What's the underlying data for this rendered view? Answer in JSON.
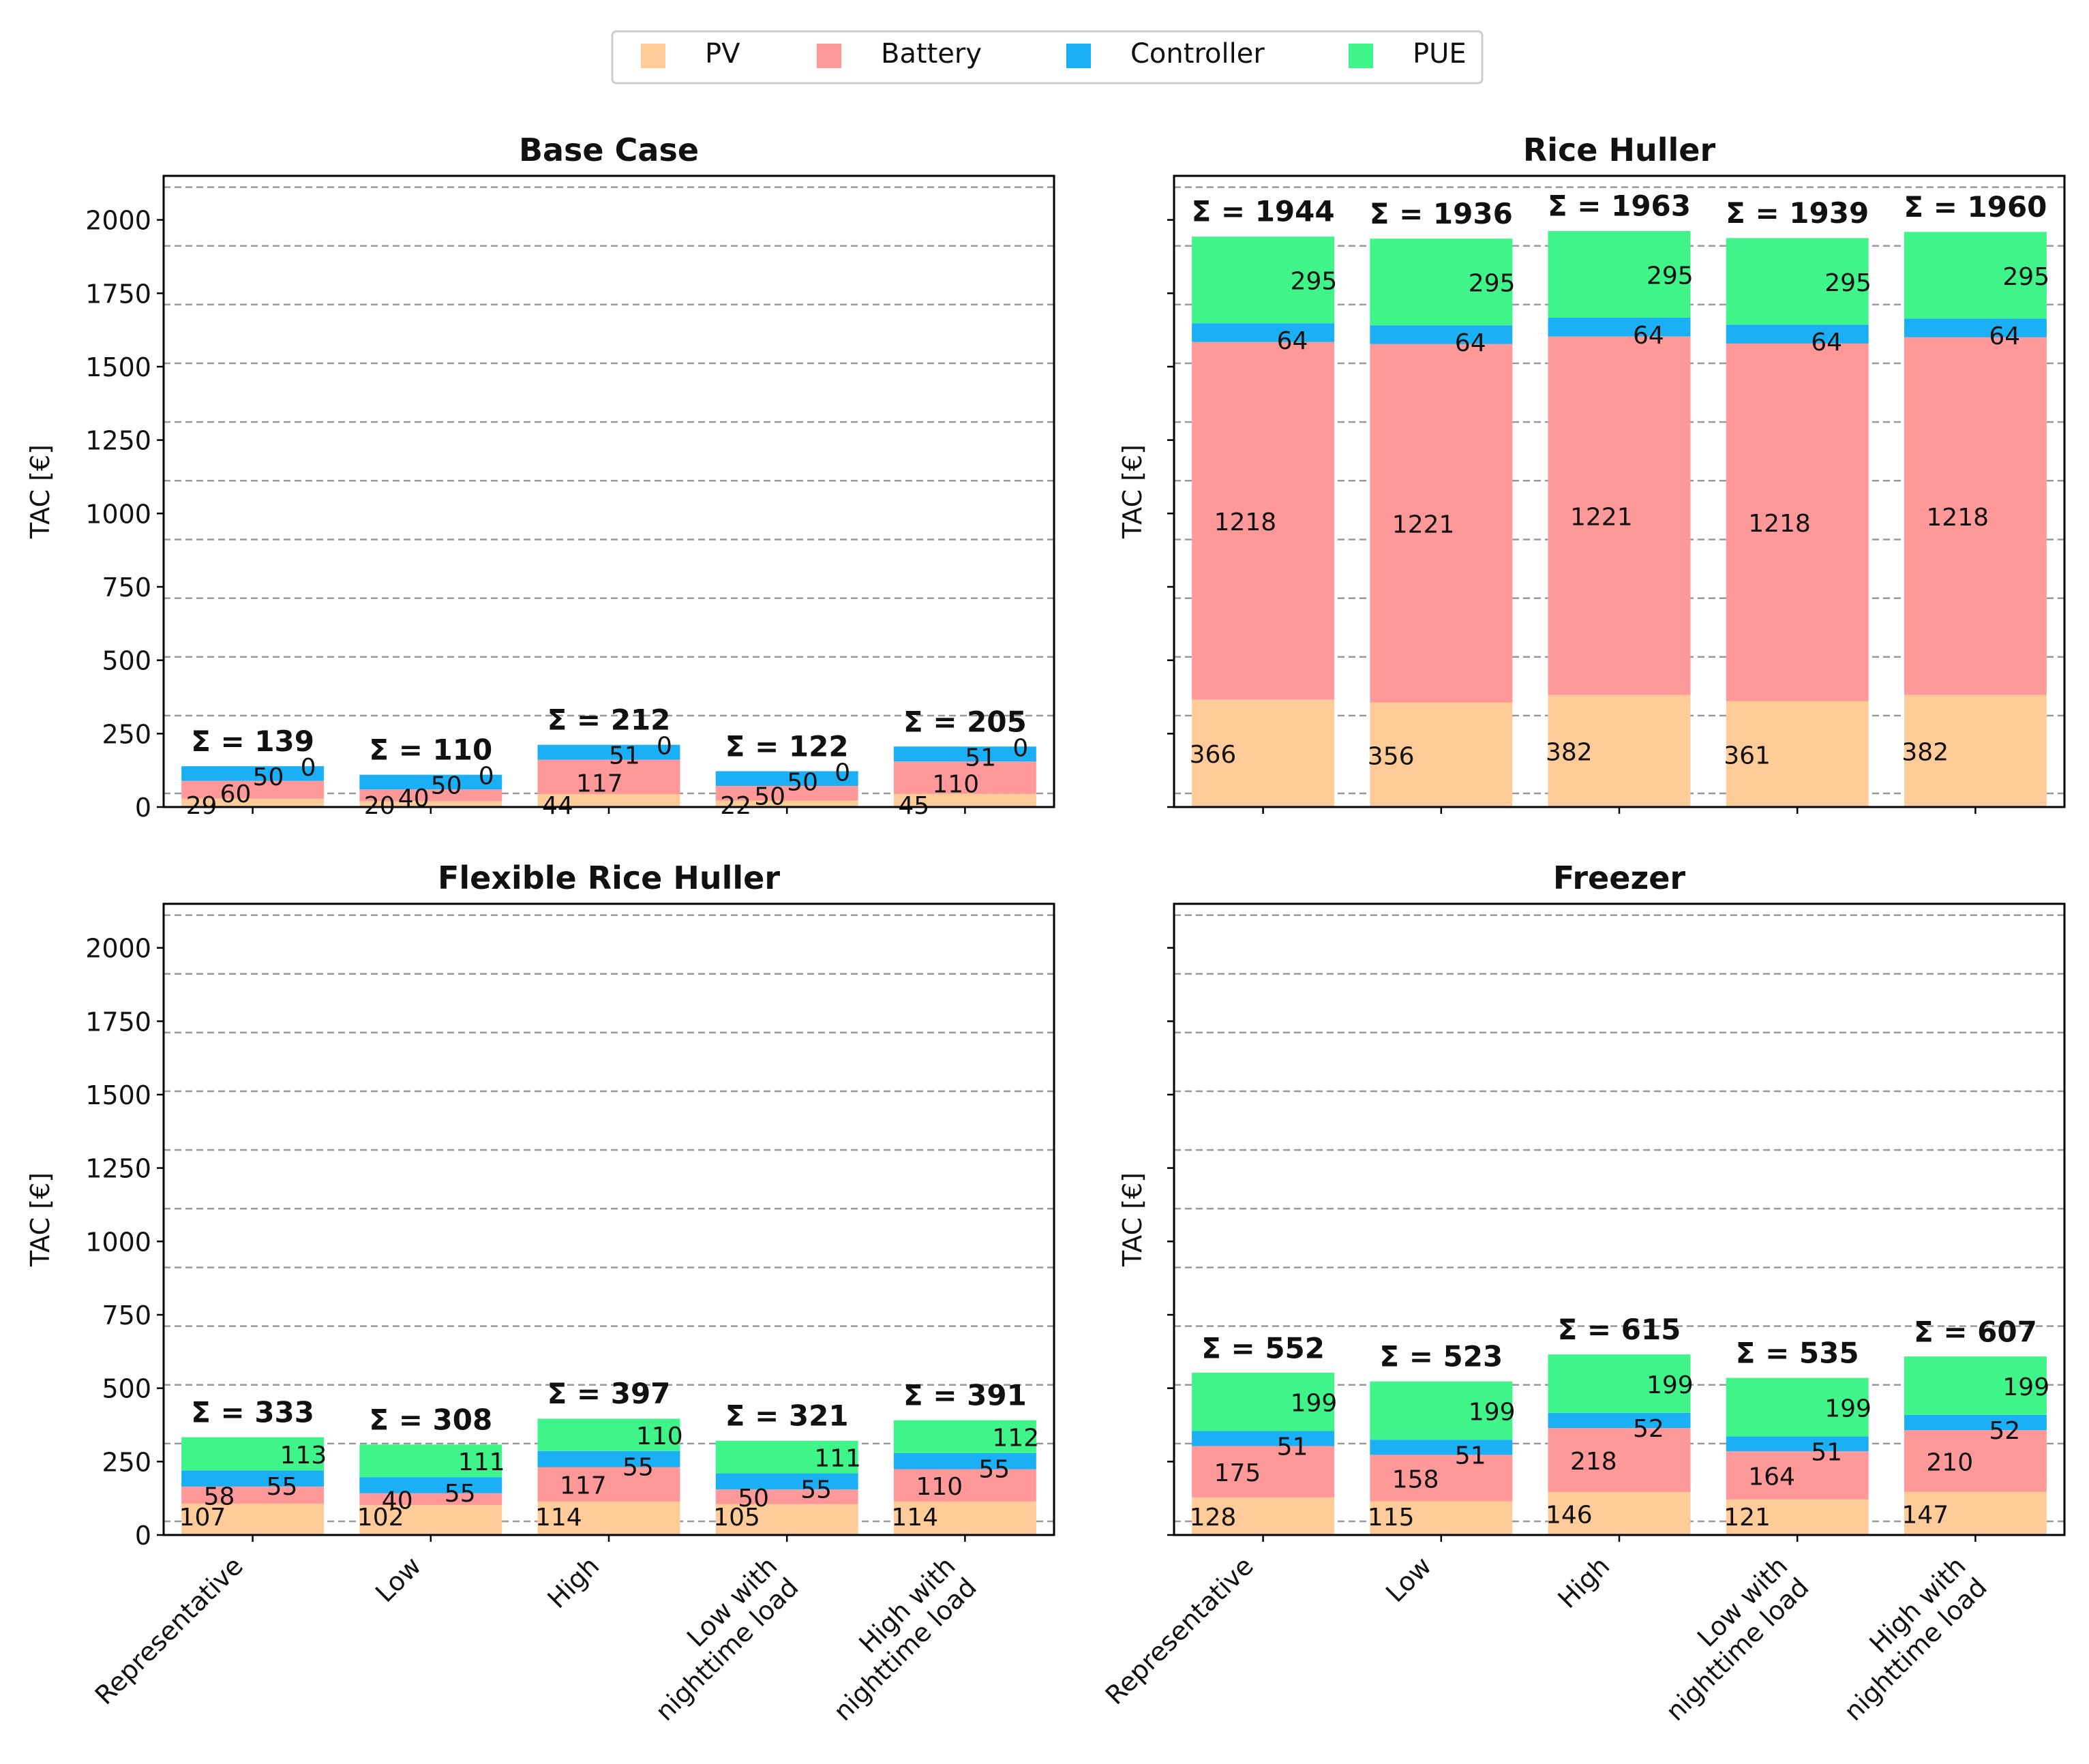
{
  "legend": {
    "location": "top-center",
    "items": [
      {
        "label": "PV",
        "color": "#FFCC99"
      },
      {
        "label": "Battery",
        "color": "#FF9999"
      },
      {
        "label": "Controller",
        "color": "#1BB0F5"
      },
      {
        "label": "PUE",
        "color": "#3FF58A"
      }
    ]
  },
  "sum_prefix": "Σ = ",
  "chart_data": [
    {
      "type": "bar",
      "stacked": true,
      "title": "Base Case",
      "ylabel": "TAC [€]",
      "ylim": [
        0,
        2150
      ],
      "yticks": [
        0,
        250,
        500,
        750,
        1000,
        1250,
        1500,
        1750,
        2000
      ],
      "grid": "dashed",
      "categories": [
        "Representative",
        "Low",
        "High",
        "Low with nighttime load",
        "High with nighttime load"
      ],
      "series": [
        {
          "name": "PV",
          "values": [
            29,
            20,
            44,
            22,
            45
          ]
        },
        {
          "name": "Battery",
          "values": [
            60,
            40,
            117,
            50,
            110
          ]
        },
        {
          "name": "Controller",
          "values": [
            50,
            50,
            51,
            50,
            51
          ]
        },
        {
          "name": "PUE",
          "values": [
            0,
            0,
            0,
            0,
            0
          ]
        }
      ],
      "totals": [
        139,
        110,
        212,
        122,
        205
      ]
    },
    {
      "type": "bar",
      "stacked": true,
      "title": "Rice Huller",
      "ylabel": "TAC [€]",
      "ylim": [
        0,
        2150
      ],
      "yticks": [
        0,
        250,
        500,
        750,
        1000,
        1250,
        1500,
        1750,
        2000
      ],
      "grid": "dashed",
      "categories": [
        "Representative",
        "Low",
        "High",
        "Low with nighttime load",
        "High with nighttime load"
      ],
      "series": [
        {
          "name": "PV",
          "values": [
            366,
            356,
            382,
            361,
            382
          ]
        },
        {
          "name": "Battery",
          "values": [
            1218,
            1221,
            1221,
            1218,
            1218
          ]
        },
        {
          "name": "Controller",
          "values": [
            64,
            64,
            64,
            64,
            64
          ]
        },
        {
          "name": "PUE",
          "values": [
            295,
            295,
            295,
            295,
            295
          ]
        }
      ],
      "totals": [
        1944,
        1936,
        1963,
        1939,
        1960
      ]
    },
    {
      "type": "bar",
      "stacked": true,
      "title": "Flexible Rice Huller",
      "ylabel": "TAC [€]",
      "ylim": [
        0,
        2150
      ],
      "yticks": [
        0,
        250,
        500,
        750,
        1000,
        1250,
        1500,
        1750,
        2000
      ],
      "grid": "dashed",
      "categories": [
        "Representative",
        "Low",
        "High",
        "Low with nighttime load",
        "High with nighttime load"
      ],
      "series": [
        {
          "name": "PV",
          "values": [
            107,
            102,
            114,
            105,
            114
          ]
        },
        {
          "name": "Battery",
          "values": [
            58,
            40,
            117,
            50,
            110
          ]
        },
        {
          "name": "Controller",
          "values": [
            55,
            55,
            55,
            55,
            55
          ]
        },
        {
          "name": "PUE",
          "values": [
            113,
            111,
            110,
            111,
            112
          ]
        }
      ],
      "totals": [
        333,
        308,
        397,
        321,
        391
      ]
    },
    {
      "type": "bar",
      "stacked": true,
      "title": "Freezer",
      "ylabel": "TAC [€]",
      "ylim": [
        0,
        2150
      ],
      "yticks": [
        0,
        250,
        500,
        750,
        1000,
        1250,
        1500,
        1750,
        2000
      ],
      "grid": "dashed",
      "categories": [
        "Representative",
        "Low",
        "High",
        "Low with nighttime load",
        "High with nighttime load"
      ],
      "series": [
        {
          "name": "PV",
          "values": [
            128,
            115,
            146,
            121,
            147
          ]
        },
        {
          "name": "Battery",
          "values": [
            175,
            158,
            218,
            164,
            210
          ]
        },
        {
          "name": "Controller",
          "values": [
            51,
            51,
            52,
            51,
            52
          ]
        },
        {
          "name": "PUE",
          "values": [
            199,
            199,
            199,
            199,
            199
          ]
        }
      ],
      "totals": [
        552,
        523,
        615,
        535,
        607
      ]
    }
  ]
}
